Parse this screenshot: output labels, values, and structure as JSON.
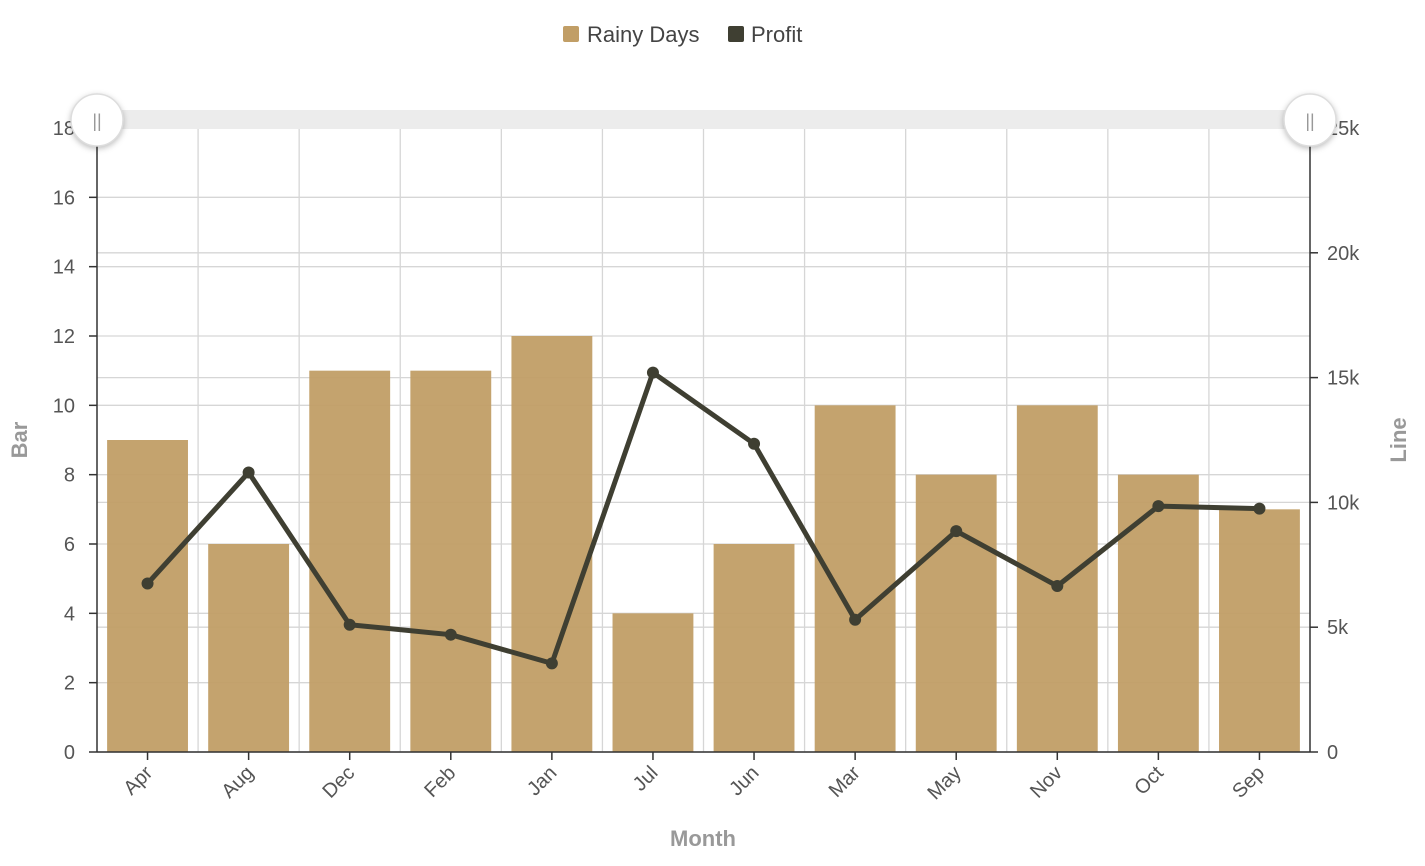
{
  "chart_data": {
    "type": "bar",
    "categories": [
      "Apr",
      "Aug",
      "Dec",
      "Feb",
      "Jan",
      "Jul",
      "Jun",
      "Mar",
      "May",
      "Nov",
      "Oct",
      "Sep"
    ],
    "series": [
      {
        "name": "Rainy Days",
        "type": "bar",
        "axis": "left",
        "color": "#c19e66",
        "values": [
          9,
          6,
          11,
          11,
          12,
          4,
          6,
          10,
          8,
          10,
          8,
          7
        ]
      },
      {
        "name": "Profit",
        "type": "line",
        "axis": "right",
        "color": "#3f3f32",
        "values": [
          6750,
          11200,
          5100,
          4700,
          3550,
          15200,
          12350,
          5300,
          8850,
          6650,
          9850,
          9750
        ]
      }
    ],
    "xlabel": "Month",
    "ylabel": "Bar",
    "y2label": "Line",
    "ylim": [
      0,
      18
    ],
    "y2lim": [
      0,
      25000
    ],
    "yticks": [
      "0",
      "2",
      "4",
      "6",
      "8",
      "10",
      "12",
      "14",
      "16",
      "18"
    ],
    "y2ticks": [
      "0",
      "5k",
      "10k",
      "15k",
      "20k",
      "25k"
    ],
    "grid": true,
    "legend_position": "top-center",
    "zoom_slider": {
      "start_handle": "||",
      "end_handle": "||"
    }
  }
}
